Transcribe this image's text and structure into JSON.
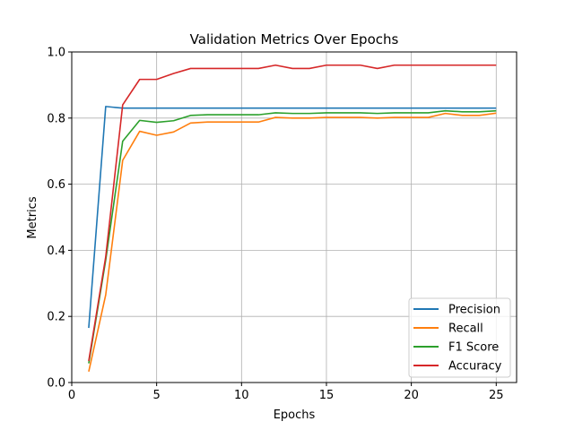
{
  "chart_data": {
    "type": "line",
    "title": "Validation Metrics Over Epochs",
    "xlabel": "Epochs",
    "ylabel": "Metrics",
    "xlim": [
      0,
      26.2
    ],
    "ylim": [
      0.0,
      1.0
    ],
    "xticks": [
      0,
      5,
      10,
      15,
      20,
      25
    ],
    "yticks": [
      0.0,
      0.2,
      0.4,
      0.6,
      0.8,
      1.0
    ],
    "grid": true,
    "legend_position": "lower-right",
    "x": [
      1,
      2,
      3,
      4,
      5,
      6,
      7,
      8,
      9,
      10,
      11,
      12,
      13,
      14,
      15,
      16,
      17,
      18,
      19,
      20,
      21,
      22,
      23,
      24,
      25
    ],
    "series": [
      {
        "name": "Precision",
        "color": "#1f77b4",
        "values": [
          0.165,
          0.835,
          0.83,
          0.83,
          0.83,
          0.83,
          0.83,
          0.83,
          0.83,
          0.83,
          0.83,
          0.83,
          0.83,
          0.83,
          0.83,
          0.83,
          0.83,
          0.83,
          0.83,
          0.83,
          0.83,
          0.83,
          0.83,
          0.83,
          0.83
        ]
      },
      {
        "name": "Recall",
        "color": "#ff7f0e",
        "values": [
          0.033,
          0.265,
          0.672,
          0.76,
          0.748,
          0.758,
          0.785,
          0.788,
          0.788,
          0.788,
          0.788,
          0.802,
          0.8,
          0.8,
          0.802,
          0.802,
          0.802,
          0.8,
          0.802,
          0.802,
          0.802,
          0.814,
          0.808,
          0.808,
          0.815
        ]
      },
      {
        "name": "F1 Score",
        "color": "#2ca02c",
        "values": [
          0.058,
          0.37,
          0.73,
          0.793,
          0.787,
          0.792,
          0.808,
          0.81,
          0.81,
          0.81,
          0.81,
          0.816,
          0.814,
          0.814,
          0.816,
          0.816,
          0.816,
          0.814,
          0.816,
          0.816,
          0.816,
          0.822,
          0.819,
          0.819,
          0.822
        ]
      },
      {
        "name": "Accuracy",
        "color": "#d62728",
        "values": [
          0.065,
          0.38,
          0.84,
          0.917,
          0.917,
          0.935,
          0.95,
          0.95,
          0.95,
          0.95,
          0.95,
          0.96,
          0.95,
          0.95,
          0.96,
          0.96,
          0.96,
          0.95,
          0.96,
          0.96,
          0.96,
          0.96,
          0.96,
          0.96,
          0.96
        ]
      }
    ]
  }
}
